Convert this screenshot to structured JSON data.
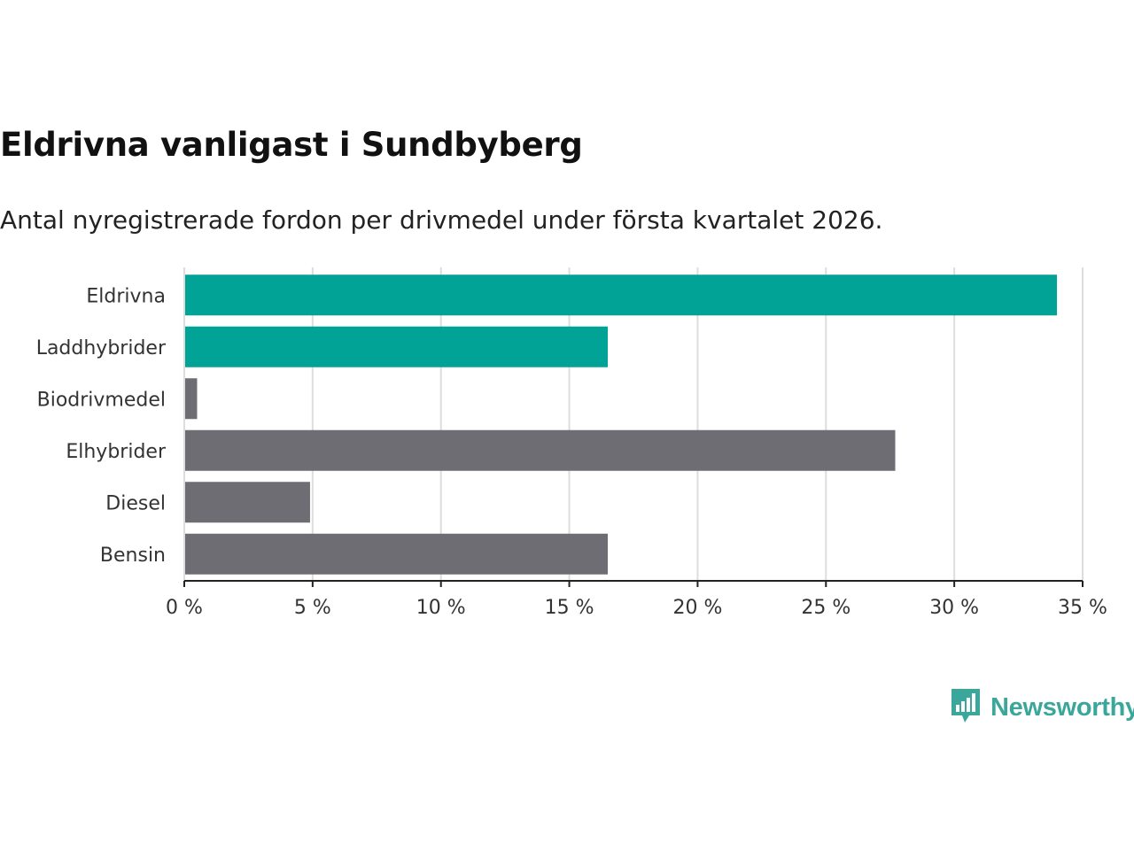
{
  "chart_data": {
    "type": "bar",
    "orientation": "horizontal",
    "title": "Eldrivna vanligast i Sundbyberg",
    "subtitle": "Antal nyregistrerade fordon per drivmedel under första kvartalet 2026.",
    "categories": [
      "Eldrivna",
      "Laddhybrider",
      "Biodrivmedel",
      "Elhybrider",
      "Diesel",
      "Bensin"
    ],
    "values": [
      34.0,
      16.5,
      0.5,
      27.7,
      4.9,
      16.5
    ],
    "unit": "%",
    "xlim": [
      0,
      35
    ],
    "xticks": [
      0,
      5,
      10,
      15,
      20,
      25,
      30,
      35
    ],
    "xtick_labels": [
      "0 %",
      "5 %",
      "10 %",
      "15 %",
      "20 %",
      "25 %",
      "30 %",
      "35 %"
    ],
    "highlight": [
      true,
      true,
      false,
      false,
      false,
      false
    ],
    "colors": {
      "highlight": "#00a396",
      "default": "#6e6d73",
      "grid": "#dddddd",
      "axis": "#222222"
    },
    "grid": true,
    "xlabel": "",
    "ylabel": ""
  },
  "brand": {
    "name": "Newsworthy",
    "icon": "bar-chart-speech-icon",
    "color": "#3aa79a"
  }
}
